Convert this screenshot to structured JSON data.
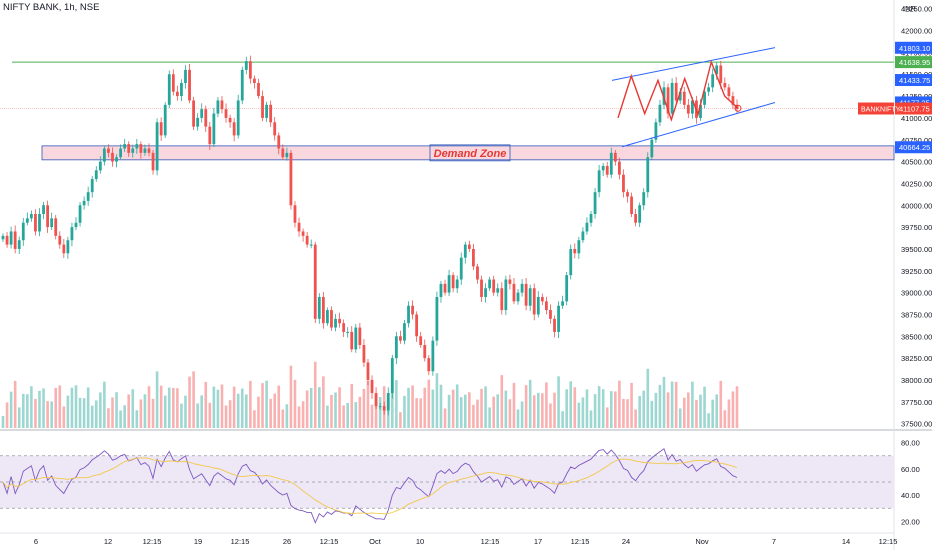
{
  "header": {
    "title": "NIFTY BANK, 1h, NSE"
  },
  "colors": {
    "up": "#26a69a",
    "down": "#ef5350",
    "resistance_line": "#4caf50",
    "price_line": "#f44336",
    "channel": "#2962ff",
    "pattern": "#e53935",
    "demand_fill": "#f8d7de",
    "demand_border": "#2f56b8",
    "rsi": "#7e57c2",
    "rsi_ma": "#f2c94c",
    "rsi_band": "#ede7f6"
  },
  "annotations": {
    "demand_zone": "Demand Zone"
  },
  "price_axis": {
    "currency": "INR",
    "ticks": [
      "42250.00",
      "42000.00",
      "41750.00",
      "41500.00",
      "41250.00",
      "41000.00",
      "40750.00",
      "40500.00",
      "40250.00",
      "40000.00",
      "39750.00",
      "39500.00",
      "39250.00",
      "39000.00",
      "38750.00",
      "38500.00",
      "38250.00",
      "38000.00",
      "37750.00",
      "37500.00"
    ],
    "tick_values": [
      42250,
      42000,
      41750,
      41500,
      41250,
      41000,
      40750,
      40500,
      40250,
      40000,
      39750,
      39500,
      39250,
      39000,
      38750,
      38500,
      38250,
      38000,
      37750,
      37500
    ],
    "labels": [
      {
        "text": "41803.10",
        "value": 41803.1,
        "color": "#2962ff"
      },
      {
        "text": "41638.95",
        "value": 41638.95,
        "color": "#4caf50"
      },
      {
        "text": "41433.75",
        "value": 41433.75,
        "color": "#2962ff"
      },
      {
        "text": "41177.25",
        "value": 41177.25,
        "color": "#2962ff"
      },
      {
        "text": "41107.75",
        "value": 41107.75,
        "color": "#f44336"
      },
      {
        "text": "40664.25",
        "value": 40664.25,
        "color": "#2962ff"
      }
    ],
    "symbol_badge": "BANKNIFTY"
  },
  "rsi_axis": {
    "ticks": [
      "80.00",
      "60.00",
      "40.00",
      "20.00"
    ],
    "tick_values": [
      80,
      60,
      40,
      20
    ],
    "upper": 70,
    "lower": 30
  },
  "time_axis": {
    "labels": [
      "6",
      "12",
      "12:15",
      "19",
      "12:15",
      "26",
      "12:15",
      "Oct",
      "10",
      "12:15",
      "17",
      "12:15",
      "24",
      "Nov",
      "7",
      "14",
      "12:15"
    ]
  },
  "chart_data": {
    "type": "candlestick",
    "price_range": [
      37450,
      42350
    ],
    "levels": {
      "resistance": 41638.95,
      "current_price": 41107.75,
      "demand_zone": [
        40520,
        40680
      ]
    },
    "channel": {
      "upper": [
        [
          0,
          41430
        ],
        [
          1,
          41805
        ]
      ],
      "lower": [
        [
          0,
          40690
        ],
        [
          1,
          41177
        ]
      ]
    },
    "pattern_points": [
      41000,
      41480,
      41050,
      41430,
      40980,
      41450,
      41040,
      41640,
      41250,
      41110
    ],
    "closes": [
      39650,
      39550,
      39700,
      39500,
      39600,
      39800,
      39850,
      39900,
      39700,
      39900,
      40000,
      39750,
      39850,
      39650,
      39550,
      39450,
      39600,
      39750,
      39800,
      40000,
      40050,
      40150,
      40300,
      40400,
      40500,
      40650,
      40600,
      40500,
      40550,
      40650,
      40700,
      40600,
      40650,
      40700,
      40600,
      40650,
      40600,
      40400,
      40950,
      40800,
      41150,
      41500,
      41300,
      41250,
      41400,
      41550,
      41200,
      40900,
      41000,
      41100,
      40900,
      40700,
      41050,
      41200,
      41100,
      41000,
      40950,
      40800,
      41200,
      41550,
      41650,
      41450,
      41400,
      41250,
      41000,
      41150,
      40950,
      40800,
      40650,
      40550,
      40600,
      40000,
      39800,
      39700,
      39650,
      39550,
      39550,
      38700,
      38950,
      38650,
      38800,
      38600,
      38700,
      38650,
      38550,
      38550,
      38350,
      38600,
      38400,
      38200,
      38000,
      37850,
      37700,
      37700,
      37650,
      37850,
      38250,
      38500,
      38450,
      38650,
      38850,
      38750,
      38500,
      38400,
      38250,
      38100,
      38450,
      38950,
      39100,
      39000,
      39200,
      39050,
      39150,
      39400,
      39550,
      39500,
      39300,
      39150,
      38950,
      39050,
      39150,
      39000,
      39050,
      38800,
      39150,
      39100,
      38900,
      39000,
      39100,
      38850,
      39050,
      38750,
      38950,
      38900,
      38800,
      38700,
      38550,
      38850,
      38900,
      39200,
      39500,
      39450,
      39600,
      39700,
      39800,
      39900,
      40150,
      40400,
      40450,
      40350,
      40600,
      40500,
      40350,
      40150,
      40100,
      39900,
      39800,
      40000,
      40150,
      40550,
      40750,
      40950,
      41150,
      41350,
      41050,
      41400,
      41200,
      41300,
      41150,
      41050,
      41200,
      41000,
      41150,
      41300,
      41350,
      41500,
      41600,
      41400,
      41350,
      41250,
      41150,
      41100
    ]
  }
}
